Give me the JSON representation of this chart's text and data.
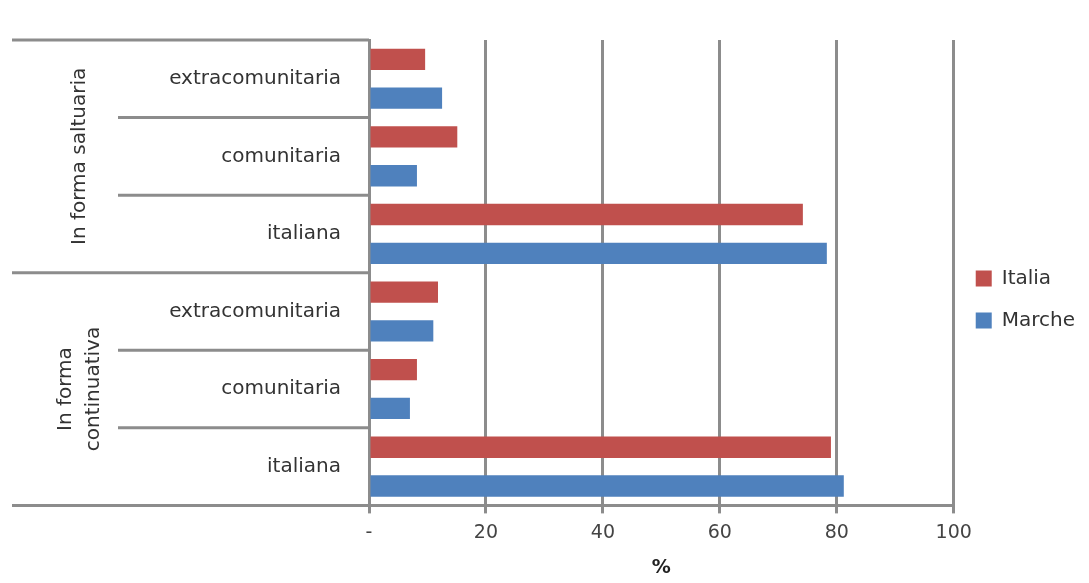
{
  "chart_data": {
    "type": "bar",
    "orientation": "horizontal",
    "xlabel": "%",
    "categories": [
      "extracomunitaria",
      "comunitaria",
      "italiana",
      "extracomunitaria",
      "comunitaria",
      "italiana"
    ],
    "series": [
      {
        "name": "Italia",
        "color": "#c0504d",
        "values": [
          9.6,
          15.1,
          74.2,
          11.8,
          8.2,
          79.0
        ]
      },
      {
        "name": "Marche",
        "color": "#4f81bd",
        "values": [
          12.5,
          8.2,
          78.3,
          11.0,
          7.0,
          81.2
        ]
      }
    ],
    "xlim": [
      0,
      100
    ],
    "xticks": [
      {
        "value": 0,
        "label": "-"
      },
      20,
      40,
      60,
      80,
      100
    ],
    "grid": "x",
    "legend": "right",
    "annotations": [
      "In forma saltuaria",
      "In forma continuativa"
    ]
  }
}
